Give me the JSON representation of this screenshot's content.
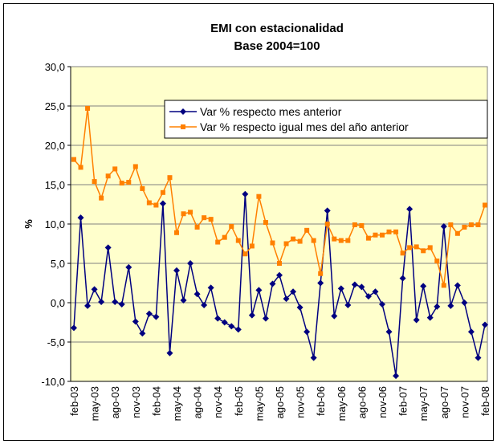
{
  "chart_data": {
    "type": "line",
    "title": "EMI con estacionalidad",
    "subtitle": "Base 2004=100",
    "y_label": "%",
    "categories": [
      "feb-03",
      null,
      null,
      "may-03",
      null,
      null,
      "ago-03",
      null,
      null,
      "nov-03",
      null,
      null,
      "feb-04",
      null,
      null,
      "may-04",
      null,
      null,
      "ago-04",
      null,
      null,
      "nov-04",
      null,
      null,
      "feb-05",
      null,
      null,
      "may-05",
      null,
      null,
      "ago-05",
      null,
      null,
      "nov-05",
      null,
      null,
      "feb-06",
      null,
      null,
      "may-06",
      null,
      null,
      "ago-06",
      null,
      null,
      "nov-06",
      null,
      null,
      "feb-07",
      null,
      null,
      "may-07",
      null,
      null,
      "ago-07",
      null,
      null,
      "nov-07",
      null,
      null,
      "feb-08"
    ],
    "series": [
      {
        "name": "Var % respecto mes anterior",
        "color": "#000080",
        "marker": "diamond",
        "values": [
          -3.2,
          10.8,
          -0.4,
          1.7,
          0.1,
          7.0,
          0.1,
          -0.2,
          4.5,
          -2.4,
          -3.9,
          -1.4,
          -1.8,
          12.6,
          -6.4,
          4.1,
          0.3,
          5.0,
          1.1,
          -0.3,
          1.9,
          -2.0,
          -2.5,
          -3.0,
          -3.4,
          13.8,
          -1.6,
          1.6,
          -2.0,
          2.4,
          3.5,
          0.5,
          1.4,
          -0.6,
          -3.7,
          -7.0,
          2.5,
          11.7,
          -1.7,
          1.8,
          -0.3,
          2.3,
          2.0,
          0.8,
          1.4,
          -0.2,
          -3.7,
          -9.3,
          3.1,
          11.9,
          -2.2,
          2.1,
          -1.9,
          -0.5,
          9.7,
          -0.4,
          2.2,
          0.0,
          -3.7,
          -7.0,
          -2.8
        ]
      },
      {
        "name": "Var % respecto igual mes del año anterior",
        "color": "#ff8000",
        "marker": "square",
        "values": [
          18.2,
          17.2,
          24.7,
          15.4,
          13.3,
          16.1,
          17.0,
          15.2,
          15.3,
          17.3,
          14.5,
          12.7,
          12.4,
          14.0,
          15.9,
          8.9,
          11.3,
          11.5,
          9.6,
          10.8,
          10.6,
          7.7,
          8.3,
          9.7,
          7.9,
          6.2,
          7.2,
          13.5,
          10.2,
          7.6,
          5.0,
          7.5,
          8.1,
          7.8,
          9.2,
          7.9,
          3.7,
          10.0,
          8.1,
          7.9,
          7.9,
          9.9,
          9.8,
          8.2,
          8.6,
          8.6,
          9.0,
          9.0,
          6.3,
          7.0,
          7.1,
          6.6,
          7.0,
          5.3,
          2.2,
          9.9,
          8.8,
          9.6,
          9.9,
          9.9,
          12.4
        ]
      }
    ],
    "ylim": [
      -10,
      30
    ],
    "yticks": [
      {
        "value": -10,
        "label": "-10,0"
      },
      {
        "value": -5,
        "label": "-5,0"
      },
      {
        "value": 0,
        "label": "0,0"
      },
      {
        "value": 5,
        "label": "5,0"
      },
      {
        "value": 10,
        "label": "10,0"
      },
      {
        "value": 15,
        "label": "15,0"
      },
      {
        "value": 20,
        "label": "20,0"
      },
      {
        "value": 25,
        "label": "25,0"
      },
      {
        "value": 30,
        "label": "30,0"
      }
    ],
    "grid": true,
    "legend": "upper right",
    "plot_background": "#ffffcc"
  }
}
